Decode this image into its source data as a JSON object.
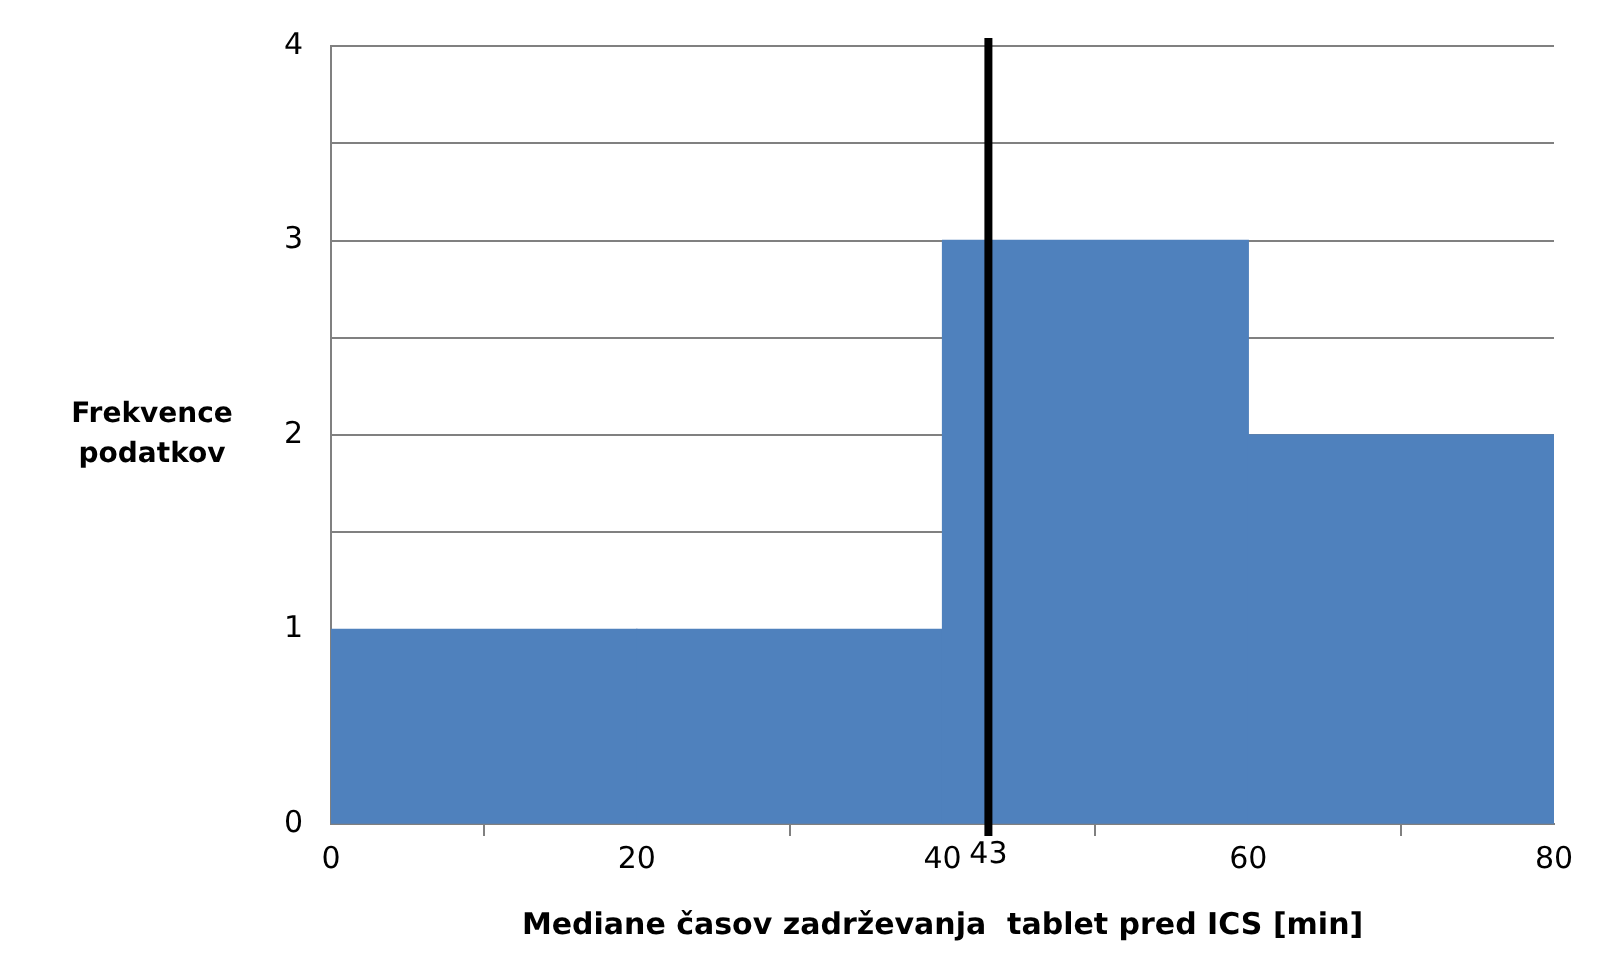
{
  "chart_data": {
    "type": "histogram",
    "xlabel": "Mediane časov zadrževanja  tablet pred ICS [min]",
    "ylabel": "Frekvence podatkov",
    "bins": [
      0,
      20,
      40,
      60,
      80
    ],
    "values": [
      1,
      1,
      3,
      2
    ],
    "color": "#4f81bd",
    "xlim": [
      0,
      80
    ],
    "xticks": [
      0,
      20,
      40,
      60,
      80
    ],
    "ylim": [
      0,
      4
    ],
    "yticks": [
      0,
      1,
      {
        "value": 1.5,
        "label": null
      },
      2,
      {
        "value": 2.5,
        "label": null
      },
      3,
      {
        "value": 3.5,
        "label": null
      },
      4
    ],
    "grid": "y",
    "legend": false,
    "ref_lines": [
      {
        "axis": "x",
        "value": 43,
        "label": "43",
        "color": "#000000"
      }
    ]
  }
}
